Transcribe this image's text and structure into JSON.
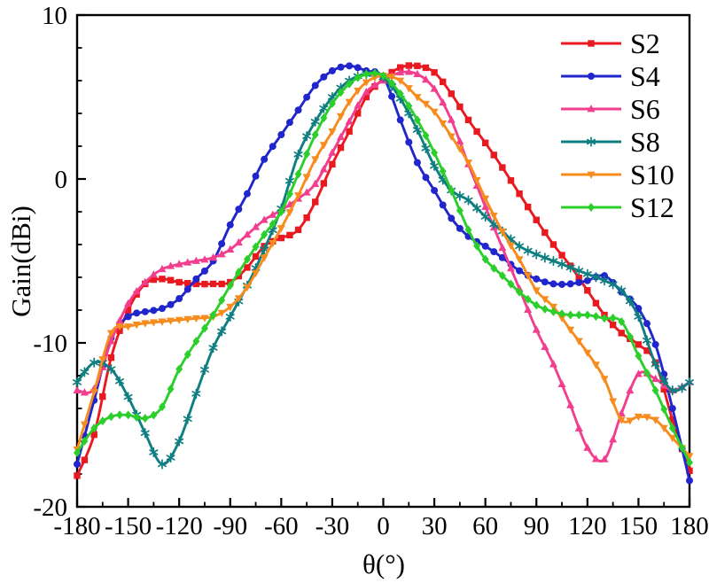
{
  "figure": {
    "xlabel": "θ(°)",
    "ylabel": "Gain(dBi)"
  },
  "legend": [
    {
      "label": "S2",
      "color": "#e8191f",
      "marker": "square"
    },
    {
      "label": "S4",
      "color": "#2125cc",
      "marker": "circle"
    },
    {
      "label": "S6",
      "color": "#f23e8e",
      "marker": "triangle-up"
    },
    {
      "label": "S8",
      "color": "#0f7e80",
      "marker": "star"
    },
    {
      "label": "S10",
      "color": "#f78c1e",
      "marker": "triangle-down"
    },
    {
      "label": "S12",
      "color": "#2bce2b",
      "marker": "diamond"
    }
  ],
  "chart_data": {
    "type": "line",
    "title": "",
    "xlabel": "θ(°)",
    "ylabel": "Gain(dBi)",
    "xlim": [
      -180,
      180
    ],
    "ylim": [
      -20,
      10
    ],
    "x_major_ticks": [
      -180,
      -150,
      -120,
      -90,
      -60,
      -30,
      0,
      30,
      60,
      90,
      120,
      150,
      180
    ],
    "x_tick_labels": [
      "-180",
      "-150",
      "-120",
      "-90",
      "-60",
      "-30",
      "0",
      "30",
      "60",
      "90",
      "120",
      "150",
      "180"
    ],
    "x_minor_step": 15,
    "y_major_ticks": [
      10,
      0,
      -10,
      -20
    ],
    "y_tick_labels": [
      "10",
      "0",
      "-10",
      "-20"
    ],
    "y_minor_step": 2,
    "grid": false,
    "legend_position": "top-right-inside",
    "x": [
      -180,
      -170,
      -160,
      -150,
      -140,
      -130,
      -120,
      -110,
      -100,
      -90,
      -80,
      -70,
      -60,
      -50,
      -40,
      -30,
      -20,
      -10,
      0,
      10,
      20,
      30,
      40,
      50,
      60,
      70,
      80,
      90,
      100,
      110,
      120,
      130,
      140,
      150,
      160,
      170,
      180
    ],
    "series": [
      {
        "name": "S2",
        "color": "#e8191f",
        "marker": "square",
        "values": [
          -18.1,
          -15.6,
          -10.9,
          -8.0,
          -6.4,
          -6.1,
          -6.3,
          -6.4,
          -6.4,
          -6.3,
          -5.4,
          -4.1,
          -3.6,
          -3.1,
          -1.4,
          0.9,
          2.9,
          5.0,
          6.1,
          6.8,
          6.9,
          6.5,
          5.2,
          3.6,
          2.2,
          0.7,
          -0.9,
          -2.5,
          -4.0,
          -5.3,
          -6.8,
          -8.3,
          -9.4,
          -10.1,
          -11.2,
          -14.7,
          -17.8
        ]
      },
      {
        "name": "S4",
        "color": "#2125cc",
        "marker": "circle",
        "values": [
          -17.4,
          -13.5,
          -9.7,
          -8.4,
          -8.1,
          -7.9,
          -7.3,
          -6.1,
          -5.0,
          -2.8,
          -0.9,
          1.2,
          2.7,
          4.2,
          5.7,
          6.6,
          6.9,
          6.6,
          6.2,
          3.6,
          1.0,
          -0.7,
          -2.4,
          -3.5,
          -4.1,
          -4.8,
          -5.6,
          -6.1,
          -6.4,
          -6.4,
          -6.2,
          -5.9,
          -6.9,
          -7.9,
          -10.1,
          -14.0,
          -18.4
        ]
      },
      {
        "name": "S6",
        "color": "#f23e8e",
        "marker": "triangle-up",
        "values": [
          -12.9,
          -12.8,
          -9.9,
          -7.6,
          -6.3,
          -5.5,
          -5.2,
          -5.0,
          -4.8,
          -4.3,
          -3.4,
          -2.5,
          -1.9,
          -1.2,
          -0.3,
          1.6,
          3.5,
          5.3,
          6.0,
          6.5,
          6.4,
          5.5,
          3.6,
          0.9,
          -1.7,
          -4.2,
          -6.7,
          -9.2,
          -11.3,
          -13.8,
          -16.4,
          -17.1,
          -14.3,
          -11.9,
          -12.2,
          -12.9,
          -12.4
        ]
      },
      {
        "name": "S8",
        "color": "#0f7e80",
        "marker": "star",
        "values": [
          -12.4,
          -11.2,
          -11.6,
          -13.3,
          -15.5,
          -17.4,
          -16.0,
          -13.1,
          -10.3,
          -8.4,
          -6.5,
          -4.3,
          -1.8,
          1.5,
          3.5,
          5.0,
          6.0,
          6.4,
          6.2,
          4.9,
          3.0,
          0.8,
          -0.7,
          -1.3,
          -2.3,
          -3.2,
          -4.1,
          -4.6,
          -5.0,
          -5.4,
          -5.8,
          -6.2,
          -6.8,
          -8.4,
          -11.3,
          -12.9,
          -12.4
        ]
      },
      {
        "name": "S10",
        "color": "#f78c1e",
        "marker": "triangle-down",
        "values": [
          -16.5,
          -13.0,
          -9.4,
          -9.0,
          -8.8,
          -8.7,
          -8.6,
          -8.5,
          -8.4,
          -7.8,
          -6.6,
          -4.8,
          -3.0,
          -1.0,
          1.2,
          2.9,
          4.7,
          5.9,
          6.3,
          6.0,
          5.0,
          4.1,
          2.6,
          1.0,
          -1.2,
          -3.2,
          -4.9,
          -6.8,
          -7.8,
          -9.2,
          -10.6,
          -12.2,
          -14.7,
          -14.5,
          -14.7,
          -15.8,
          -16.9
        ]
      },
      {
        "name": "S12",
        "color": "#2bce2b",
        "marker": "diamond",
        "values": [
          -16.7,
          -15.2,
          -14.5,
          -14.4,
          -14.6,
          -13.9,
          -11.6,
          -9.9,
          -8.3,
          -6.5,
          -4.9,
          -3.4,
          -2.0,
          0.3,
          2.7,
          4.6,
          5.8,
          6.4,
          6.3,
          5.2,
          3.6,
          1.6,
          -0.7,
          -3.1,
          -4.9,
          -5.9,
          -6.9,
          -7.7,
          -8.1,
          -8.3,
          -8.3,
          -8.5,
          -8.7,
          -10.8,
          -12.9,
          -15.2,
          -17.3
        ]
      }
    ]
  }
}
